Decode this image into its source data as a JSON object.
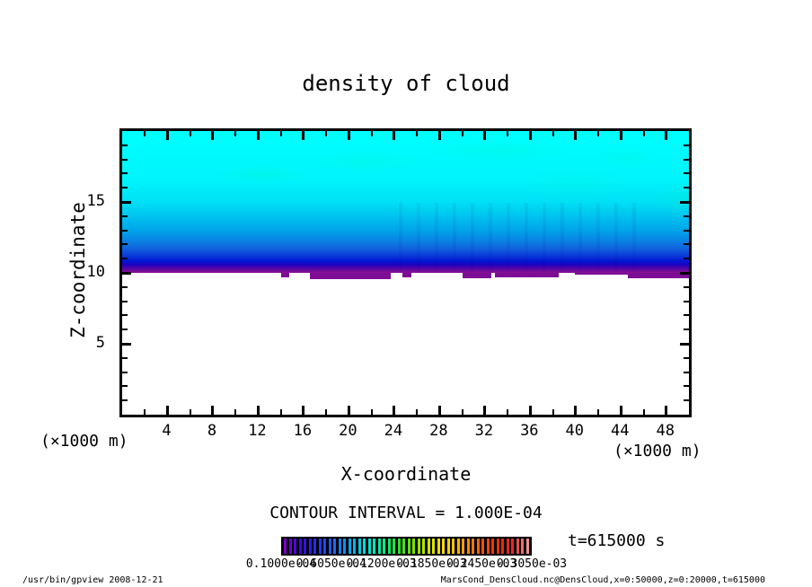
{
  "title": "density of cloud",
  "annotations": {
    "contour_interval": "CONTOUR INTERVAL = 1.000E-04",
    "time_label": "t=615000 s"
  },
  "footer": {
    "left": "/usr/bin/gpview  2008-12-21",
    "right": "MarsCond_DensCloud.nc@DensCloud,x=0:50000,z=0:20000,t=615000"
  },
  "chart_data": {
    "type": "heatmap",
    "title": "density of cloud",
    "xlabel": "X-coordinate",
    "ylabel": "Z-coordinate",
    "x_unit": "(×1000 m)",
    "y_unit": "(×1000 m)",
    "xlim": [
      0,
      50
    ],
    "ylim": [
      0,
      20
    ],
    "x_major_ticks": [
      4,
      8,
      12,
      16,
      20,
      24,
      28,
      32,
      36,
      40,
      44,
      48
    ],
    "x_minor_step": 2,
    "y_major_ticks": [
      5,
      10,
      15
    ],
    "y_minor_step": 1,
    "grid": false,
    "contour_interval": "1.000E-04",
    "time_seconds": 615000,
    "field_summary": "Tone-filled cloud density on an x-z section: cloud occupies z≈10–20 (×1000 m) across the whole x range 0–50. Density is highest aloft (cyan, ≈1.2e-04) and decreases downward through blue (≈0.5–1.0e-04) to a thin violet layer (≈0.1e-04) at the cloud base near z=10, with an irregular lower edge; no cloud (white) below z≈10.",
    "estimated_profile": [
      {
        "z": 20.0,
        "density": 0.00012
      },
      {
        "z": 15.0,
        "density": 0.00011
      },
      {
        "z": 13.0,
        "density": 9e-05
      },
      {
        "z": 12.0,
        "density": 7e-05
      },
      {
        "z": 11.0,
        "density": 5e-05
      },
      {
        "z": 10.4,
        "density": 3e-05
      },
      {
        "z": 10.0,
        "density": 1e-05
      },
      {
        "z": 9.9,
        "density": 0
      }
    ],
    "tone_gradient": [
      {
        "z": 20.0,
        "color": "#00FFFF"
      },
      {
        "z": 16.5,
        "color": "#00F4FB"
      },
      {
        "z": 15.0,
        "color": "#00E0F6"
      },
      {
        "z": 14.0,
        "color": "#00C4EF"
      },
      {
        "z": 13.0,
        "color": "#00A4E9"
      },
      {
        "z": 12.3,
        "color": "#0A84E3"
      },
      {
        "z": 11.7,
        "color": "#1162DD"
      },
      {
        "z": 11.2,
        "color": "#0A3AD8"
      },
      {
        "z": 10.8,
        "color": "#0212D2"
      },
      {
        "z": 10.55,
        "color": "#2201BE"
      },
      {
        "z": 10.35,
        "color": "#4D05A8"
      },
      {
        "z": 10.15,
        "color": "#700C9A"
      },
      {
        "z": 10.0,
        "color": "#8D1192"
      }
    ],
    "cloud_base_bumps": [
      {
        "x0": 14.0,
        "x1": 14.7,
        "depth": 0.3
      },
      {
        "x0": 16.6,
        "x1": 23.7,
        "depth": 0.45
      },
      {
        "x0": 24.7,
        "x1": 25.5,
        "depth": 0.3
      },
      {
        "x0": 30.0,
        "x1": 32.6,
        "depth": 0.35
      },
      {
        "x0": 32.9,
        "x1": 38.5,
        "depth": 0.3
      },
      {
        "x0": 39.9,
        "x1": 44.6,
        "depth": 0.15
      },
      {
        "x0": 44.6,
        "x1": 50.0,
        "depth": 0.35
      }
    ],
    "bump_color": "#7E0D96",
    "colorbar": {
      "background": "#000000",
      "n_stripes": 50,
      "key_colors": [
        "#7C00CC",
        "#3A06E8",
        "#2430F0",
        "#1E66F6",
        "#00A8F0",
        "#00E0DC",
        "#00EE9A",
        "#2ADF2A",
        "#7FE000",
        "#D8E600",
        "#FFD800",
        "#FFA000",
        "#FF6000",
        "#F03000",
        "#E82020",
        "#F09090"
      ],
      "labels": [
        "0.1000e-04",
        "0.6050e-04",
        "0.1200e-03",
        "0.1850e-03",
        "0.2450e-03",
        "0.3050e-03"
      ]
    }
  }
}
